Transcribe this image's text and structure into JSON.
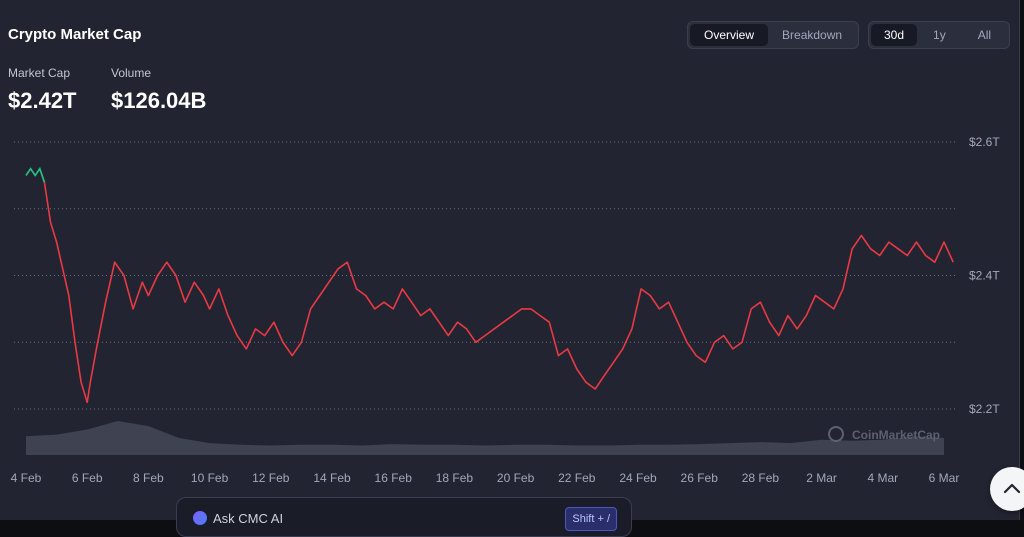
{
  "title": "Crypto Market Cap",
  "view_toggle": {
    "options": [
      "Overview",
      "Breakdown"
    ],
    "active": "Overview"
  },
  "range_toggle": {
    "options": [
      "30d",
      "1y",
      "All"
    ],
    "active": "30d"
  },
  "stats": [
    {
      "label": "Market Cap",
      "value": "$2.42T"
    },
    {
      "label": "Volume",
      "value": "$126.04B"
    }
  ],
  "watermark": "CoinMarketCap",
  "ask_bar": {
    "label": "Ask CMC AI",
    "shortcut": "Shift + /"
  },
  "colors": {
    "background": "#222531",
    "line_down": "#ea3943",
    "line_up": "#16c784",
    "volume": "#4a4e5c",
    "grid": "#6b7080"
  },
  "chart_data": {
    "type": "line",
    "title": "",
    "xlabel": "",
    "ylabel": "",
    "x_ticks": [
      "4 Feb",
      "6 Feb",
      "8 Feb",
      "10 Feb",
      "12 Feb",
      "14 Feb",
      "16 Feb",
      "18 Feb",
      "20 Feb",
      "22 Feb",
      "24 Feb",
      "26 Feb",
      "28 Feb",
      "2 Mar",
      "4 Mar",
      "6 Mar"
    ],
    "y_ticks": [
      "$2.6T",
      "$2.4T",
      "$2.2T"
    ],
    "y_tick_values": [
      2.6,
      2.4,
      2.2
    ],
    "gridlines": [
      2.2,
      2.3,
      2.4,
      2.5,
      2.6
    ],
    "ylim": [
      2.2,
      2.6
    ],
    "x_unit": "days since 4 Feb",
    "xlim": [
      0,
      30
    ],
    "series": [
      {
        "name": "Market Cap",
        "unit": "T USD",
        "x": [
          0,
          0.15,
          0.3,
          0.45,
          0.6,
          0.8,
          1.0,
          1.2,
          1.4,
          1.6,
          1.8,
          2.0,
          2.1,
          2.3,
          2.6,
          2.9,
          3.2,
          3.5,
          3.8,
          4.0,
          4.3,
          4.6,
          4.9,
          5.2,
          5.5,
          5.8,
          6.0,
          6.3,
          6.6,
          6.9,
          7.2,
          7.5,
          7.8,
          8.1,
          8.4,
          8.7,
          9.0,
          9.3,
          9.6,
          9.9,
          10.2,
          10.5,
          10.8,
          11.1,
          11.4,
          11.7,
          12.0,
          12.3,
          12.6,
          12.9,
          13.2,
          13.5,
          13.8,
          14.1,
          14.4,
          14.7,
          15.0,
          15.3,
          15.6,
          15.9,
          16.2,
          16.5,
          16.8,
          17.1,
          17.4,
          17.7,
          18.0,
          18.3,
          18.6,
          18.9,
          19.2,
          19.5,
          19.8,
          20.1,
          20.4,
          20.7,
          21.0,
          21.3,
          21.6,
          21.9,
          22.2,
          22.5,
          22.8,
          23.1,
          23.4,
          23.7,
          24.0,
          24.3,
          24.6,
          24.9,
          25.2,
          25.5,
          25.8,
          26.1,
          26.4,
          26.7,
          27.0,
          27.3,
          27.6,
          27.9,
          28.2,
          28.5,
          28.8,
          29.1,
          29.4,
          29.7,
          30.0,
          30.3
        ],
        "values": [
          2.55,
          2.56,
          2.55,
          2.56,
          2.54,
          2.48,
          2.45,
          2.41,
          2.37,
          2.3,
          2.24,
          2.21,
          2.24,
          2.29,
          2.36,
          2.42,
          2.4,
          2.35,
          2.39,
          2.37,
          2.4,
          2.42,
          2.4,
          2.36,
          2.39,
          2.37,
          2.35,
          2.38,
          2.34,
          2.31,
          2.29,
          2.32,
          2.31,
          2.33,
          2.3,
          2.28,
          2.3,
          2.35,
          2.37,
          2.39,
          2.41,
          2.42,
          2.38,
          2.37,
          2.35,
          2.36,
          2.35,
          2.38,
          2.36,
          2.34,
          2.35,
          2.33,
          2.31,
          2.33,
          2.32,
          2.3,
          2.31,
          2.32,
          2.33,
          2.34,
          2.35,
          2.35,
          2.34,
          2.33,
          2.28,
          2.29,
          2.26,
          2.24,
          2.23,
          2.25,
          2.27,
          2.29,
          2.32,
          2.38,
          2.37,
          2.35,
          2.36,
          2.33,
          2.3,
          2.28,
          2.27,
          2.3,
          2.31,
          2.29,
          2.3,
          2.35,
          2.36,
          2.33,
          2.31,
          2.34,
          2.32,
          2.34,
          2.37,
          2.36,
          2.35,
          2.38,
          2.44,
          2.46,
          2.44,
          2.43,
          2.45,
          2.44,
          2.43,
          2.45,
          2.43,
          2.42,
          2.45,
          2.42
        ]
      }
    ],
    "volume_series": {
      "name": "Volume",
      "x": [
        0,
        1,
        2,
        3,
        4,
        5,
        6,
        7,
        8,
        9,
        10,
        11,
        12,
        13,
        14,
        15,
        16,
        17,
        18,
        19,
        20,
        21,
        22,
        23,
        24,
        25,
        26,
        27,
        28,
        29,
        30
      ],
      "values": [
        0.55,
        0.6,
        0.75,
        1.0,
        0.85,
        0.5,
        0.35,
        0.3,
        0.28,
        0.3,
        0.3,
        0.28,
        0.32,
        0.3,
        0.3,
        0.28,
        0.3,
        0.3,
        0.28,
        0.28,
        0.3,
        0.3,
        0.32,
        0.35,
        0.38,
        0.35,
        0.45,
        0.42,
        0.45,
        0.55,
        0.5
      ]
    }
  }
}
